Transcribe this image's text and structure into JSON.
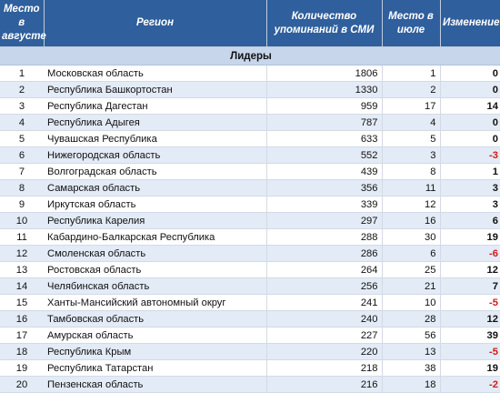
{
  "header": {
    "col_rank_august": "Место в августе",
    "col_region": "Регион",
    "col_mentions": "Количество упоминаний в СМИ",
    "col_rank_july": "Место в июле",
    "col_change": "Изменение"
  },
  "section_title": "Лидеры",
  "colors": {
    "header_bg": "#2f5f9c",
    "section_bg": "#c7d6ea",
    "negative": "#d21a1a"
  },
  "rows": [
    {
      "rank": "1",
      "region": "Московская область",
      "mentions": "1806",
      "july": "1",
      "change": "0"
    },
    {
      "rank": "2",
      "region": "Республика Башкортостан",
      "mentions": "1330",
      "july": "2",
      "change": "0"
    },
    {
      "rank": "3",
      "region": "Республика Дагестан",
      "mentions": "959",
      "july": "17",
      "change": "14"
    },
    {
      "rank": "4",
      "region": "Республика Адыгея",
      "mentions": "787",
      "july": "4",
      "change": "0"
    },
    {
      "rank": "5",
      "region": "Чувашская Республика",
      "mentions": "633",
      "july": "5",
      "change": "0"
    },
    {
      "rank": "6",
      "region": "Нижегородская область",
      "mentions": "552",
      "july": "3",
      "change": "-3"
    },
    {
      "rank": "7",
      "region": "Волгоградская область",
      "mentions": "439",
      "july": "8",
      "change": "1"
    },
    {
      "rank": "8",
      "region": "Самарская область",
      "mentions": "356",
      "july": "11",
      "change": "3"
    },
    {
      "rank": "9",
      "region": "Иркутская область",
      "mentions": "339",
      "july": "12",
      "change": "3"
    },
    {
      "rank": "10",
      "region": "Республика Карелия",
      "mentions": "297",
      "july": "16",
      "change": "6"
    },
    {
      "rank": "11",
      "region": "Кабардино-Балкарская Республика",
      "mentions": "288",
      "july": "30",
      "change": "19"
    },
    {
      "rank": "12",
      "region": "Смоленская область",
      "mentions": "286",
      "july": "6",
      "change": "-6"
    },
    {
      "rank": "13",
      "region": "Ростовская область",
      "mentions": "264",
      "july": "25",
      "change": "12"
    },
    {
      "rank": "14",
      "region": "Челябинская область",
      "mentions": "256",
      "july": "21",
      "change": "7"
    },
    {
      "rank": "15",
      "region": "Ханты-Мансийский автономный округ",
      "mentions": "241",
      "july": "10",
      "change": "-5"
    },
    {
      "rank": "16",
      "region": "Тамбовская область",
      "mentions": "240",
      "july": "28",
      "change": "12"
    },
    {
      "rank": "17",
      "region": "Амурская область",
      "mentions": "227",
      "july": "56",
      "change": "39"
    },
    {
      "rank": "18",
      "region": "Республика Крым",
      "mentions": "220",
      "july": "13",
      "change": "-5"
    },
    {
      "rank": "19",
      "region": "Республика Татарстан",
      "mentions": "218",
      "july": "38",
      "change": "19"
    },
    {
      "rank": "20",
      "region": "Пензенская область",
      "mentions": "216",
      "july": "18",
      "change": "-2"
    }
  ]
}
